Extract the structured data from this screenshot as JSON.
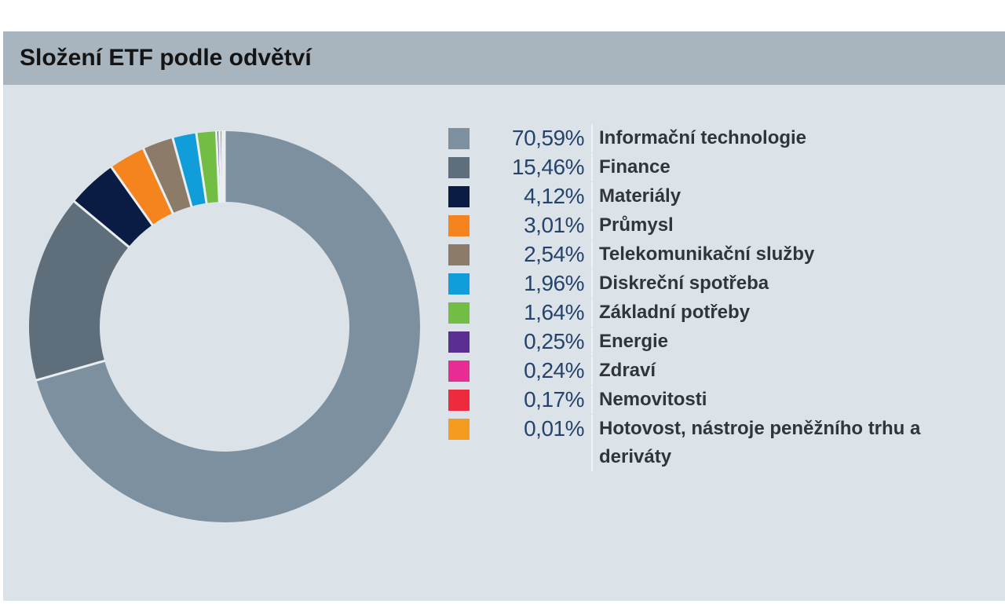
{
  "header": {
    "title": "Složení ETF podle odvětví"
  },
  "colors": {
    "header_bar": "#a8b4be",
    "chart_background": "#dce3e8",
    "page_background": "#ffffff",
    "percent_text": "#25436b",
    "label_text": "#30353a",
    "segment_gap": "#e9eef1"
  },
  "chart_data": {
    "type": "pie",
    "subtype": "donut",
    "title": "Složení ETF podle odvětví",
    "legend_position": "right",
    "start_angle_deg": 0,
    "direction": "clockwise",
    "inner_radius_ratio": 0.64,
    "value_format": "percent-comma-decimal",
    "segments": [
      {
        "label": "Informační technologie",
        "value": 70.59,
        "display": "70,59%",
        "color": "#7c909f"
      },
      {
        "label": "Finance",
        "value": 15.46,
        "display": "15,46%",
        "color": "#5e6e7a"
      },
      {
        "label": "Materiály",
        "value": 4.12,
        "display": "4,12%",
        "color": "#0a1c44"
      },
      {
        "label": "Průmysl",
        "value": 3.01,
        "display": "3,01%",
        "color": "#f5841f"
      },
      {
        "label": "Telekomunikační služby",
        "value": 2.54,
        "display": "2,54%",
        "color": "#8c7b69"
      },
      {
        "label": "Diskreční spotřeba",
        "value": 1.96,
        "display": "1,96%",
        "color": "#119cda"
      },
      {
        "label": "Základní potřeby",
        "value": 1.64,
        "display": "1,64%",
        "color": "#72be44"
      },
      {
        "label": "Energie",
        "value": 0.25,
        "display": "0,25%",
        "color": "#5b2e91"
      },
      {
        "label": "Zdraví",
        "value": 0.24,
        "display": "0,24%",
        "color": "#e92c93"
      },
      {
        "label": "Nemovitosti",
        "value": 0.17,
        "display": "0,17%",
        "color": "#ee2b3c"
      },
      {
        "label": "Hotovost, nástroje peněžního trhu a deriváty",
        "value": 0.01,
        "display": "0,01%",
        "color": "#f59b20"
      }
    ]
  }
}
